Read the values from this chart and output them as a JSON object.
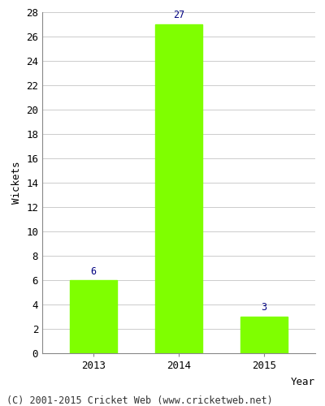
{
  "categories": [
    "2013",
    "2014",
    "2015"
  ],
  "values": [
    6,
    27,
    3
  ],
  "bar_color": "#7fff00",
  "bar_edgecolor": "#7fff00",
  "label_color": "#000080",
  "xlabel": "Year",
  "ylabel": "Wickets",
  "ylim": [
    0,
    28
  ],
  "yticks": [
    0,
    2,
    4,
    6,
    8,
    10,
    12,
    14,
    16,
    18,
    20,
    22,
    24,
    26,
    28
  ],
  "grid_color": "#cccccc",
  "background_color": "#ffffff",
  "footer": "(C) 2001-2015 Cricket Web (www.cricketweb.net)",
  "label_fontsize": 8.5,
  "axis_fontsize": 9,
  "footer_fontsize": 8.5,
  "bar_width": 0.55
}
